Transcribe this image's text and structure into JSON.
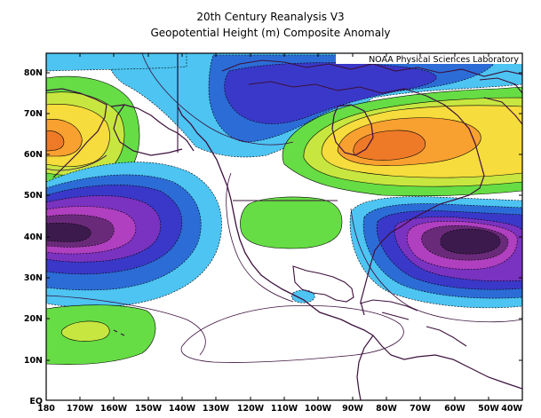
{
  "title": "20th Century Reanalysis V3",
  "subtitle": "Geopotential Height (m) Composite Anomaly",
  "credit": "NOAA Physical Sciences Laboratory",
  "lat_labels": [
    "80N",
    "70N",
    "60N",
    "50N",
    "40N",
    "30N",
    "20N",
    "10N",
    "EQ"
  ],
  "lon_labels": [
    "180",
    "170W",
    "160W",
    "150W",
    "140W",
    "130W",
    "120W",
    "110W",
    "100W",
    "90W",
    "80W",
    "70W",
    "60W",
    "50W",
    "40W"
  ],
  "colors": {
    "neg_light": "#4dc4f2",
    "neg_mid": "#2c6cd6",
    "neg_blue": "#3a38c8",
    "neg_purple": "#7a32c0",
    "neg_magenta": "#b040c0",
    "neg_deep": "#6a2a7a",
    "neg_darkest": "#3c1a4e",
    "pos_green": "#66dd44",
    "pos_yellowgreen": "#c8e640",
    "pos_yellow": "#f6dc3c",
    "pos_orange": "#f8a030",
    "pos_deep_orange": "#ee7a28",
    "coast": "#3c103c"
  }
}
